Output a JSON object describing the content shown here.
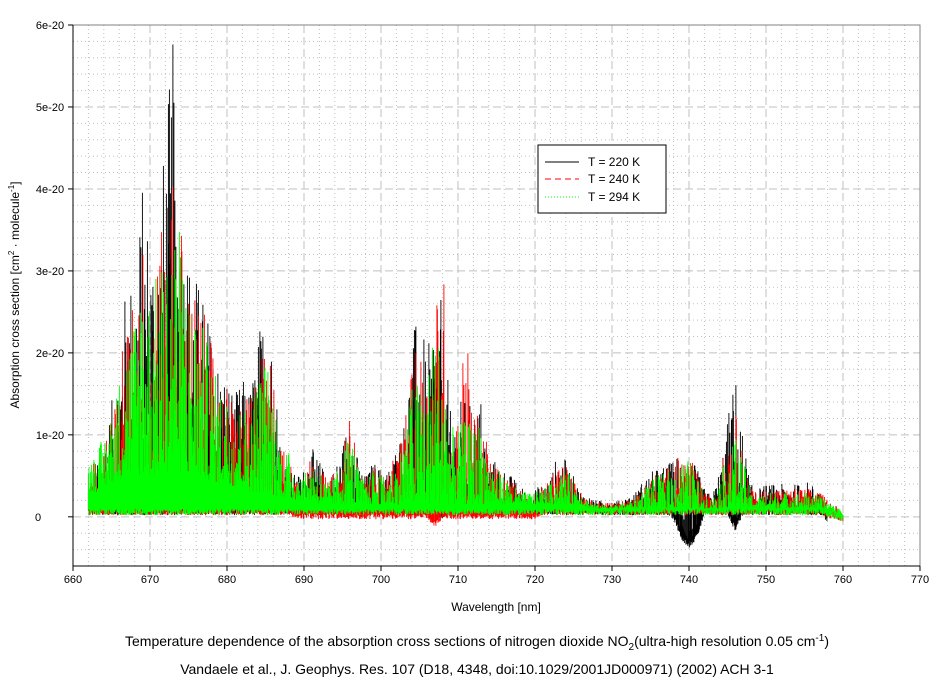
{
  "chart_data": {
    "type": "line",
    "xlabel": "Wavelength [nm]",
    "ylabel_parts": [
      "Absorption cross section [cm",
      "2",
      " · molecule",
      "-1",
      "]"
    ],
    "xlim": [
      660,
      770
    ],
    "ylim": [
      -6e-21,
      6e-20
    ],
    "x_ticks": [
      660,
      670,
      680,
      690,
      700,
      710,
      720,
      730,
      740,
      750,
      760,
      770
    ],
    "x_tick_labels": [
      "660",
      "670",
      "680",
      "690",
      "700",
      "710",
      "720",
      "730",
      "740",
      "750",
      "760",
      "770"
    ],
    "y_ticks": [
      0,
      1e-20,
      2e-20,
      3e-20,
      4e-20,
      5e-20,
      6e-20
    ],
    "y_tick_labels": [
      "0",
      "1e-20",
      "2e-20",
      "3e-20",
      "4e-20",
      "5e-20",
      "6e-20"
    ],
    "grid": true,
    "legend_position": "top-right",
    "x_start": 662,
    "x_step": 1,
    "value_unit": 1e-20,
    "series": [
      {
        "name": "T = 220 K",
        "color": "#000000",
        "style": "solid",
        "peak": [
          0.5,
          0.6,
          0.9,
          1.4,
          2.0,
          3.0,
          3.0,
          4.1,
          3.7,
          3.5,
          4.8,
          5.85,
          4.0,
          3.3,
          3.0,
          2.7,
          2.3,
          1.9,
          1.8,
          1.5,
          1.7,
          1.6,
          2.2,
          2.8,
          2.1,
          0.9,
          0.6,
          0.5,
          0.6,
          0.85,
          0.7,
          0.5,
          0.6,
          0.9,
          1.4,
          0.7,
          0.5,
          0.7,
          0.6,
          0.6,
          0.9,
          1.2,
          2.2,
          2.6,
          1.9,
          2.9,
          2.6,
          1.3,
          1.4,
          1.5,
          1.3,
          1.5,
          0.7,
          0.7,
          0.6,
          0.5,
          0.4,
          0.3,
          0.35,
          0.4,
          0.5,
          0.8,
          0.7,
          0.5,
          0.3,
          0.25,
          0.2,
          0.2,
          0.2,
          0.2,
          0.25,
          0.3,
          0.45,
          0.55,
          0.6,
          0.65,
          0.7,
          0.9,
          0.8,
          0.6,
          0.35,
          0.25,
          0.6,
          1.2,
          1.8,
          1.0,
          0.4,
          0.35,
          0.4,
          0.4,
          0.4,
          0.4,
          0.4,
          0.45,
          0.4,
          0.35,
          0,
          0,
          0
        ],
        "base": [
          0.1,
          0.15,
          0.2,
          0.3,
          0.35,
          0.4,
          0.45,
          0.45,
          0.45,
          0.45,
          0.5,
          0.5,
          0.5,
          0.45,
          0.45,
          0.4,
          0.4,
          0.35,
          0.35,
          0.3,
          0.3,
          0.25,
          0.25,
          0.2,
          0.2,
          0.2,
          0.15,
          0.15,
          0.15,
          0.15,
          0.12,
          0.12,
          0.1,
          0.1,
          0.1,
          0.1,
          0.1,
          0.1,
          0.1,
          0.1,
          0.1,
          0.1,
          0.1,
          0.1,
          0.1,
          0.1,
          0.05,
          0.1,
          0.1,
          0.1,
          0.1,
          0.1,
          0.1,
          0.1,
          0.1,
          0.1,
          0.1,
          0.1,
          0.1,
          0.1,
          0.1,
          0.1,
          0.1,
          0.1,
          0.1,
          0.1,
          0.1,
          0.1,
          0.1,
          0.1,
          0.1,
          0.1,
          0.1,
          0.1,
          0.1,
          0.1,
          0.05,
          -0.2,
          -0.3,
          -0.2,
          0.1,
          0.1,
          0.1,
          0.1,
          -0.1,
          0.1,
          0.1,
          0.1,
          0.1,
          0.1,
          0.1,
          0.1,
          0.1,
          0.1,
          0.1,
          0.1,
          0,
          0,
          0
        ]
      },
      {
        "name": "T = 240 K",
        "color": "#ff0000",
        "style": "dashed",
        "peak": [
          0.6,
          0.7,
          0.9,
          1.3,
          1.8,
          2.5,
          2.7,
          3.5,
          3.0,
          3.2,
          3.8,
          4.3,
          3.7,
          3.0,
          2.8,
          2.5,
          2.1,
          1.7,
          1.6,
          1.4,
          1.5,
          1.4,
          2.0,
          2.3,
          1.8,
          0.9,
          0.7,
          0.55,
          0.55,
          0.75,
          0.65,
          0.45,
          0.55,
          0.85,
          1.3,
          0.65,
          0.45,
          0.65,
          0.55,
          0.55,
          0.8,
          1.1,
          1.9,
          2.1,
          1.9,
          2.6,
          3.35,
          1.2,
          1.3,
          2.5,
          1.2,
          1.4,
          0.7,
          0.65,
          0.55,
          0.45,
          0.35,
          0.3,
          0.33,
          0.38,
          0.45,
          0.7,
          0.65,
          0.45,
          0.3,
          0.22,
          0.18,
          0.18,
          0.18,
          0.18,
          0.22,
          0.25,
          0.4,
          0.5,
          0.55,
          0.6,
          0.65,
          0.8,
          0.75,
          0.55,
          0.32,
          0.22,
          0.55,
          1.0,
          1.3,
          0.8,
          0.35,
          0.3,
          0.35,
          0.35,
          0.35,
          0.35,
          0.35,
          0.35,
          0.35,
          0.3,
          0.22,
          0.15,
          0.05
        ],
        "base": [
          0.15,
          0.15,
          0.15,
          0.15,
          0.15,
          0.15,
          0.15,
          0.15,
          0.15,
          0.15,
          0.15,
          0.15,
          0.15,
          0.15,
          0.15,
          0.15,
          0.15,
          0.15,
          0.15,
          0.15,
          0.1,
          0.1,
          0.1,
          0.1,
          0.1,
          0.1,
          0.1,
          0.05,
          0.05,
          0.05,
          0.05,
          0.05,
          0.05,
          0.05,
          0.05,
          0.05,
          0.05,
          0.05,
          0.05,
          0.05,
          0.05,
          0.05,
          0.05,
          0.05,
          0.05,
          -0.05,
          0.05,
          0.05,
          0.05,
          0.05,
          0.05,
          0.05,
          0.05,
          0.05,
          0.05,
          0.05,
          0.05,
          0.05,
          0.05,
          0.1,
          0.1,
          0.1,
          0.1,
          0.1,
          0.1,
          0.1,
          0.1,
          0.1,
          0.1,
          0.1,
          0.1,
          0.1,
          0.1,
          0.1,
          0.1,
          0.1,
          0.1,
          0.1,
          0.1,
          0.1,
          0.1,
          0.1,
          0.1,
          0.1,
          0.1,
          0.1,
          0.1,
          0.1,
          0.1,
          0.1,
          0.1,
          0.1,
          0.1,
          0.1,
          0.1,
          0.1,
          0.05,
          0.05,
          0.02
        ]
      },
      {
        "name": "T = 294 K",
        "color": "#00ff00",
        "style": "dotted",
        "peak": [
          0.7,
          0.8,
          1.0,
          1.3,
          1.7,
          2.2,
          2.5,
          3.3,
          2.8,
          3.0,
          3.3,
          3.9,
          3.5,
          2.8,
          2.6,
          2.3,
          1.9,
          1.6,
          1.5,
          1.3,
          1.4,
          1.3,
          1.8,
          2.0,
          1.6,
          0.9,
          0.8,
          0.6,
          0.5,
          0.7,
          0.6,
          0.4,
          0.5,
          0.8,
          1.1,
          0.6,
          0.4,
          0.6,
          0.5,
          0.5,
          0.7,
          1.0,
          1.6,
          1.7,
          1.8,
          2.4,
          2.1,
          1.1,
          1.1,
          1.2,
          1.1,
          1.2,
          0.7,
          0.6,
          0.5,
          0.4,
          0.3,
          0.3,
          0.3,
          0.35,
          0.4,
          0.5,
          0.6,
          0.4,
          0.3,
          0.2,
          0.15,
          0.15,
          0.15,
          0.15,
          0.2,
          0.2,
          0.35,
          0.45,
          0.5,
          0.55,
          0.6,
          0.7,
          0.7,
          0.5,
          0.3,
          0.2,
          0.45,
          0.8,
          1.0,
          0.7,
          0.3,
          0.25,
          0.3,
          0.3,
          0.3,
          0.3,
          0.3,
          0.3,
          0.3,
          0.25,
          0.2,
          0.15,
          0.05
        ],
        "base": [
          0.3,
          0.3,
          0.35,
          0.4,
          0.45,
          0.5,
          0.5,
          0.5,
          0.5,
          0.5,
          0.55,
          0.55,
          0.55,
          0.5,
          0.5,
          0.45,
          0.45,
          0.4,
          0.4,
          0.35,
          0.35,
          0.3,
          0.3,
          0.3,
          0.25,
          0.25,
          0.2,
          0.2,
          0.2,
          0.2,
          0.15,
          0.15,
          0.15,
          0.15,
          0.15,
          0.15,
          0.15,
          0.15,
          0.15,
          0.15,
          0.15,
          0.15,
          0.15,
          0.15,
          0.15,
          0.15,
          0.15,
          0.15,
          0.15,
          0.15,
          0.15,
          0.15,
          0.15,
          0.15,
          0.15,
          0.15,
          0.15,
          0.15,
          0.15,
          0.15,
          0.15,
          0.15,
          0.15,
          0.15,
          0.15,
          0.1,
          0.1,
          0.1,
          0.1,
          0.1,
          0.1,
          0.1,
          0.1,
          0.1,
          0.1,
          0.1,
          0.1,
          0.1,
          0.1,
          0.1,
          0.1,
          0.1,
          0.1,
          0.1,
          0.1,
          0.1,
          0.1,
          0.1,
          0.1,
          0.1,
          0.1,
          0.1,
          0.1,
          0.1,
          0.1,
          0.1,
          0.08,
          0.05,
          0.02
        ]
      }
    ],
    "caption_line1_parts": [
      "Temperature dependence of the absorption cross sections of nitrogen dioxide NO",
      "2",
      "(ultra-high resolution 0.05 cm",
      "-1",
      ")"
    ],
    "caption_line2": "Vandaele et al., J. Geophys. Res. 107 (D18, 4348, doi:10.1029/2001JD000971) (2002) ACH 3-1"
  }
}
